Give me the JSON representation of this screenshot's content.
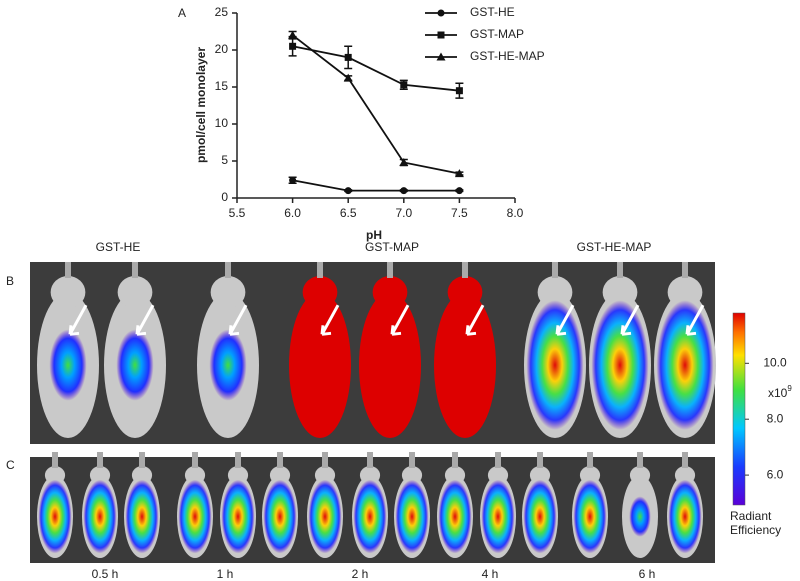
{
  "chart_data": {
    "type": "line",
    "panel_label": "A",
    "xlabel": "pH",
    "ylabel": "pmol/cell monolayer",
    "x": [
      6.0,
      6.5,
      7.0,
      7.5
    ],
    "xlim": [
      5.5,
      8.0
    ],
    "xticks": [
      {
        "value": 5.5,
        "label": "5.5"
      },
      {
        "value": 6.0,
        "label": "6.0"
      },
      {
        "value": 6.5,
        "label": "6.5"
      },
      {
        "value": 7.0,
        "label": "7.0"
      },
      {
        "value": 7.5,
        "label": "7.5"
      },
      {
        "value": 8.0,
        "label": "8.0"
      }
    ],
    "ylim": [
      0,
      25
    ],
    "yticks": [
      0,
      5,
      10,
      15,
      20,
      25
    ],
    "legend": "upper right",
    "series": [
      {
        "name": "GST-HE",
        "color": "#111111",
        "marker": "circle",
        "values": [
          2.4,
          1.0,
          1.0,
          1.0
        ],
        "errors": [
          0.4,
          0.1,
          0.1,
          0.1
        ]
      },
      {
        "name": "GST-MAP",
        "color": "#111111",
        "marker": "square",
        "values": [
          20.5,
          19.0,
          15.3,
          14.5
        ],
        "errors": [
          1.3,
          1.5,
          0.6,
          1.0
        ]
      },
      {
        "name": "GST-HE-MAP",
        "color": "#111111",
        "marker": "triangle",
        "values": [
          22.0,
          16.2,
          4.8,
          3.3
        ],
        "errors": [
          0.5,
          0.3,
          0.4,
          0.2
        ]
      }
    ]
  },
  "imaging": {
    "panel_b": {
      "label": "B",
      "groups": [
        "GST-HE",
        "GST-MAP",
        "GST-HE-MAP"
      ]
    },
    "panel_c": {
      "label": "C",
      "times": [
        "0.5 h",
        "1 h",
        "2 h",
        "4 h",
        "6 h"
      ]
    },
    "colorbar": {
      "range": [
        4.93,
        11.8
      ],
      "ticks": [
        {
          "value": 6.0,
          "label": "6.0"
        },
        {
          "value": 8.0,
          "label": "8.0"
        },
        {
          "value": 10.0,
          "label": "10.0"
        }
      ],
      "multiplier": "x10",
      "exponent": "9",
      "title": [
        "Radiant",
        "Efficiency"
      ]
    }
  }
}
